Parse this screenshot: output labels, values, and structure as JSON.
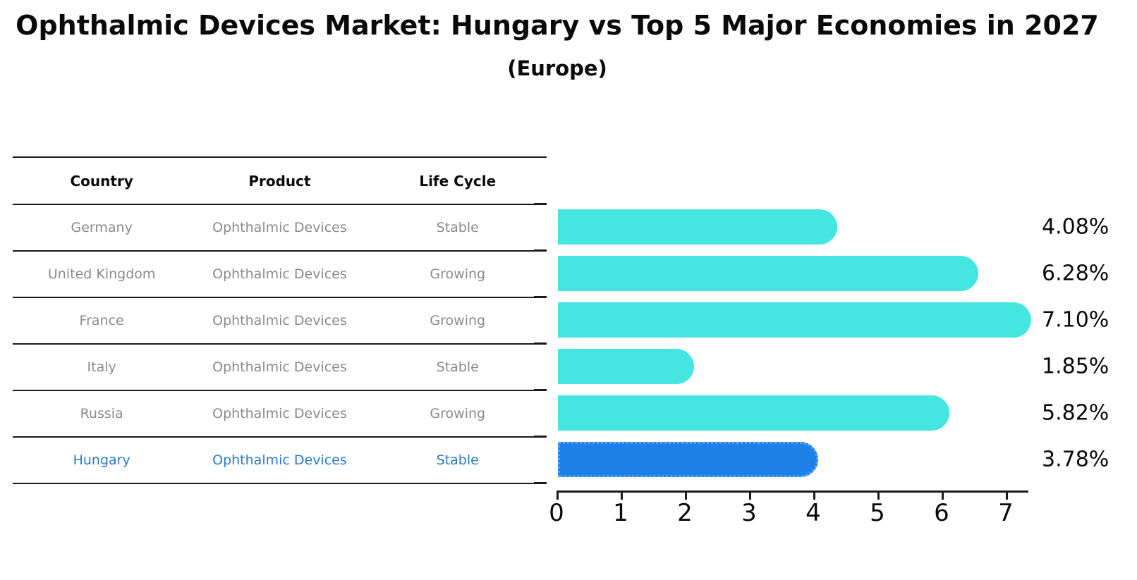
{
  "title": "Ophthalmic Devices Market: Hungary vs Top 5 Major Economies in 2027",
  "subtitle": "(Europe)",
  "table": {
    "headers": [
      "Country",
      "Product",
      "Life Cycle"
    ],
    "rows": [
      {
        "country": "Germany",
        "product": "Ophthalmic Devices",
        "life_cycle": "Stable",
        "highlight": false
      },
      {
        "country": "United Kingdom",
        "product": "Ophthalmic Devices",
        "life_cycle": "Growing",
        "highlight": false
      },
      {
        "country": "France",
        "product": "Ophthalmic Devices",
        "life_cycle": "Growing",
        "highlight": false
      },
      {
        "country": "Italy",
        "product": "Ophthalmic Devices",
        "life_cycle": "Stable",
        "highlight": false
      },
      {
        "country": "Russia",
        "product": "Ophthalmic Devices",
        "life_cycle": "Growing",
        "highlight": true
      }
    ]
  },
  "chart_data": {
    "type": "bar",
    "orientation": "horizontal",
    "title": "Ophthalmic Devices Market: Hungary vs Top 5 Major Economies in 2027 (Europe)",
    "categories": [
      "Germany",
      "United Kingdom",
      "France",
      "Italy",
      "Russia",
      "Hungary"
    ],
    "values": [
      4.08,
      6.28,
      7.1,
      1.85,
      5.82,
      3.78
    ],
    "value_labels": [
      "4.08%",
      "6.28%",
      "7.10%",
      "1.85%",
      "5.82%",
      "3.78%"
    ],
    "highlight_category": "Hungary",
    "xlabel": "",
    "ylabel": "",
    "xticks": [
      "0",
      "1",
      "2",
      "3",
      "4",
      "5",
      "6",
      "7"
    ],
    "xlim": [
      0,
      7.33
    ],
    "grid": false,
    "legend": false,
    "colors": {
      "bar": "#45e6e0",
      "highlight_bar": "#1e7fe8",
      "highlight_bar_border": "#5aa5f2",
      "highlight_text": "#2a7aca",
      "table_text": "#8a8a8a",
      "text": "#0a0a0a"
    }
  }
}
